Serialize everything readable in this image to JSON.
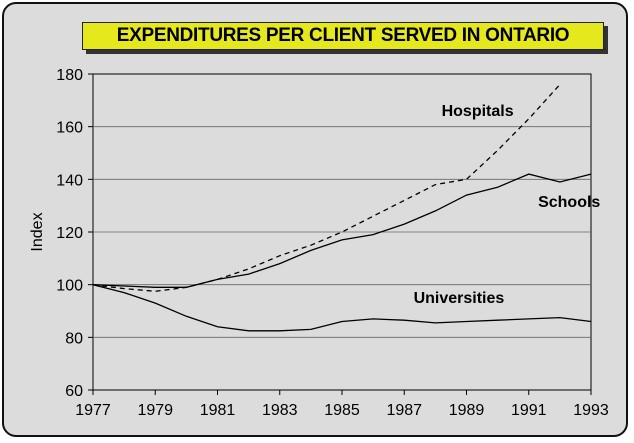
{
  "chart_data": {
    "type": "line",
    "title": "EXPENDITURES PER CLIENT SERVED IN ONTARIO",
    "ylabel": "Index",
    "xlabel": "",
    "xlim": [
      1977,
      1993
    ],
    "ylim": [
      60,
      180
    ],
    "yticks": [
      60,
      80,
      100,
      120,
      140,
      160,
      180
    ],
    "xticks": [
      1977,
      1979,
      1981,
      1983,
      1985,
      1987,
      1989,
      1991,
      1993
    ],
    "grid": "horizontal",
    "series": [
      {
        "name": "Hospitals",
        "style": "dashed",
        "x": [
          1977,
          1978,
          1979,
          1980,
          1981,
          1982,
          1983,
          1984,
          1985,
          1986,
          1987,
          1988,
          1989,
          1990,
          1991,
          1992
        ],
        "y": [
          100,
          98.5,
          97.5,
          99,
          102,
          106,
          111,
          115,
          120,
          126,
          132,
          138,
          140,
          151,
          163,
          176
        ]
      },
      {
        "name": "Schools",
        "style": "solid",
        "x": [
          1977,
          1978,
          1979,
          1980,
          1981,
          1982,
          1983,
          1984,
          1985,
          1986,
          1987,
          1988,
          1989,
          1990,
          1991,
          1992,
          1993
        ],
        "y": [
          100,
          99.5,
          99,
          99,
          102,
          104,
          108,
          113,
          117,
          119,
          123,
          128,
          134,
          137,
          142,
          139,
          142
        ]
      },
      {
        "name": "Universities",
        "style": "solid",
        "x": [
          1977,
          1978,
          1979,
          1980,
          1981,
          1982,
          1983,
          1984,
          1985,
          1986,
          1987,
          1988,
          1989,
          1990,
          1991,
          1992,
          1993
        ],
        "y": [
          100,
          97,
          93,
          88,
          84,
          82.5,
          82.5,
          83,
          86,
          87,
          86.5,
          85.5,
          86,
          86.5,
          87,
          87.5,
          86
        ]
      }
    ]
  }
}
